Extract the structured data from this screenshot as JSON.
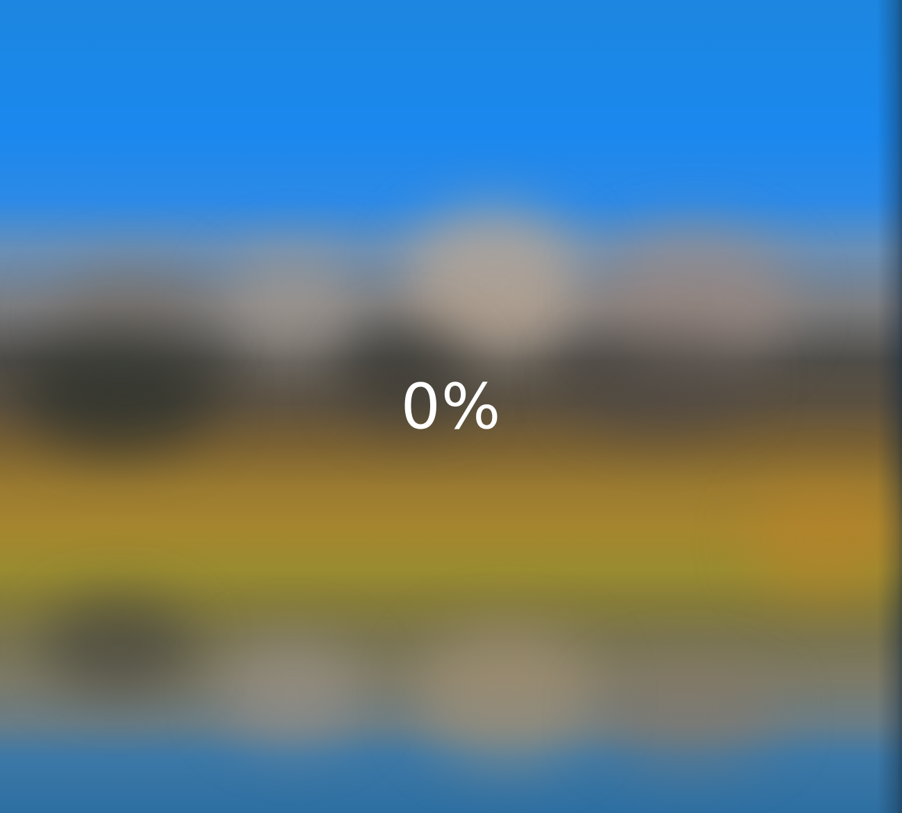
{
  "loading": {
    "progress_text": "0%",
    "progress_fraction": 0
  },
  "colors": {
    "sky": "#1a88ee",
    "field": "#a5862f",
    "water": "#2d6fa2",
    "text": "#ffffff"
  }
}
